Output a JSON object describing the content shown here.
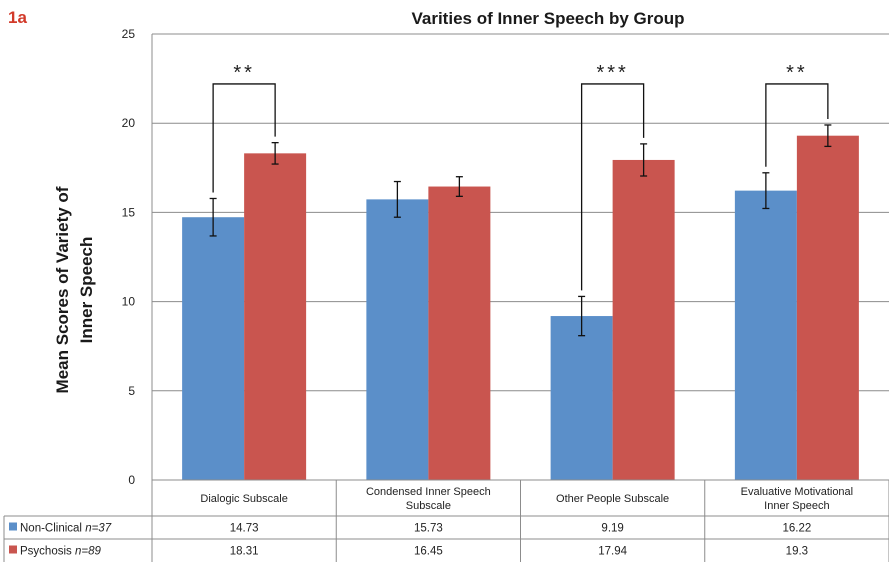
{
  "chart_data": {
    "type": "bar",
    "panel_label": "1a",
    "title": "Varities of Inner Speech by Group",
    "ylabel_lines": [
      "Mean Scores of Variety of",
      "Inner Speech"
    ],
    "ylim": [
      0,
      25
    ],
    "yticks": [
      "0",
      "5",
      "10",
      "15",
      "20",
      "25"
    ],
    "grid": true,
    "categories": [
      [
        "Dialogic Subscale"
      ],
      [
        "Condensed Inner Speech",
        "Subscale"
      ],
      [
        "Other People Subscale"
      ],
      [
        "Evaluative Motivational",
        "Inner Speech"
      ]
    ],
    "series": [
      {
        "name": "Non-Clinical",
        "n_label": "n=37",
        "color": "#5b8fc9",
        "values": [
          14.73,
          15.73,
          9.19,
          16.22
        ],
        "value_labels": [
          "14.73",
          "15.73",
          "9.19",
          "16.22"
        ],
        "error": [
          1.05,
          1.0,
          1.1,
          1.0
        ]
      },
      {
        "name": "Psychosis",
        "n_label": "n=89",
        "color": "#c9554f",
        "values": [
          18.31,
          16.45,
          17.94,
          19.3
        ],
        "value_labels": [
          "18.31",
          "16.45",
          "17.94",
          "19.3"
        ],
        "error": [
          0.6,
          0.55,
          0.9,
          0.6
        ]
      }
    ],
    "significance": [
      {
        "category": 0,
        "label": "**"
      },
      {
        "category": 2,
        "label": "***"
      },
      {
        "category": 3,
        "label": "**"
      }
    ],
    "data_table": true
  }
}
